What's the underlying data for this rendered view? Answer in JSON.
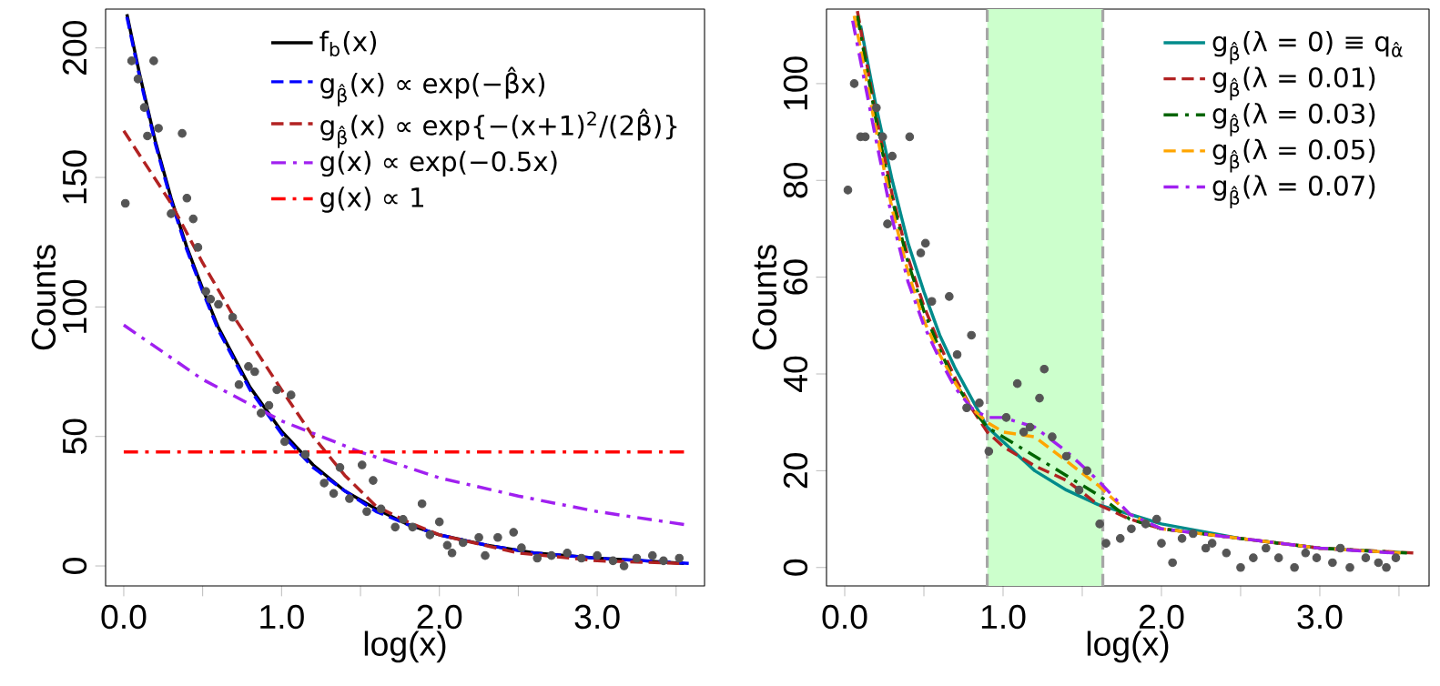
{
  "chart_data": [
    {
      "type": "line",
      "xlabel": "log(x)",
      "ylabel": "Counts",
      "xlim": [
        -0.115,
        3.68
      ],
      "ylim": [
        -7.7,
        215
      ],
      "xticks": [
        {
          "value": 0,
          "label": "0.0"
        },
        {
          "value": 0.5,
          "label": null
        },
        {
          "value": 1,
          "label": "1.0"
        },
        {
          "value": 1.5,
          "label": null
        },
        {
          "value": 2,
          "label": "2.0"
        },
        {
          "value": 2.5,
          "label": null
        },
        {
          "value": 3,
          "label": "3.0"
        },
        {
          "value": 3.5,
          "label": null
        }
      ],
      "yticks": [
        0,
        50,
        100,
        150,
        200
      ],
      "legend": "top right",
      "series": [
        {
          "type": "scatter",
          "color": "#555555",
          "x": [
            0.01,
            0.05,
            0.09,
            0.13,
            0.15,
            0.19,
            0.22,
            0.3,
            0.37,
            0.4,
            0.44,
            0.47,
            0.52,
            0.55,
            0.6,
            0.69,
            0.73,
            0.79,
            0.83,
            0.87,
            0.92,
            0.97,
            1.02,
            1.06,
            1.15,
            1.27,
            1.33,
            1.37,
            1.43,
            1.51,
            1.54,
            1.58,
            1.63,
            1.72,
            1.77,
            1.83,
            1.89,
            1.94,
            2.0,
            2.05,
            2.08,
            2.15,
            2.25,
            2.29,
            2.37,
            2.47,
            2.52,
            2.62,
            2.71,
            2.81,
            2.9,
            3.0,
            3.1,
            3.17,
            3.25,
            3.35,
            3.42,
            3.52
          ],
          "values": [
            140,
            195,
            188,
            177,
            166,
            195,
            169,
            136,
            167,
            142,
            134,
            123,
            106,
            103,
            101,
            96,
            70,
            77,
            75,
            59,
            62,
            68,
            48,
            66,
            43,
            32,
            28,
            38,
            26,
            39,
            21,
            33,
            22,
            15,
            18,
            15,
            24,
            12,
            17,
            8,
            5,
            9,
            11,
            4,
            11,
            13,
            7,
            3,
            4,
            5,
            3,
            4,
            2,
            0,
            3,
            4,
            2,
            3
          ]
        },
        {
          "name": "f$_{b}$(x)",
          "color": "#000000",
          "line_style": "solid",
          "x": [
            0.02,
            0.1,
            0.2,
            0.3,
            0.4,
            0.5,
            0.6,
            0.8,
            1.0,
            1.2,
            1.4,
            1.6,
            1.8,
            2.0,
            2.3,
            2.6,
            3.0,
            3.3,
            3.55
          ],
          "values": [
            213,
            190,
            164,
            142,
            123,
            107,
            92,
            69,
            52,
            39,
            29,
            22,
            16,
            12,
            8,
            5,
            3,
            2,
            1
          ]
        },
        {
          "name": "g$_{β̂}$(x) ∝ exp(−β̂x)",
          "color": "#0000ff",
          "line_style": "dashed",
          "x": [
            0.02,
            0.1,
            0.2,
            0.3,
            0.4,
            0.5,
            0.6,
            0.8,
            1.0,
            1.2,
            1.4,
            1.6,
            1.8,
            2.0,
            2.3,
            2.6,
            3.0,
            3.3,
            3.58
          ],
          "values": [
            212,
            189,
            163,
            141,
            122,
            106,
            91,
            68,
            51,
            38,
            29,
            21,
            16,
            12,
            8,
            5,
            3,
            2,
            1
          ]
        },
        {
          "name": "g$_{β̂}$(x) ∝ exp{−(x+1)$^{2}$/(2β̂)}",
          "color": "#b22222",
          "line_style": "dashed",
          "x": [
            0,
            0.3,
            0.5,
            0.7,
            1.0,
            1.2,
            1.4,
            1.6,
            1.8,
            2.0,
            2.5,
            3.0,
            3.52
          ],
          "values": [
            168,
            140,
            117,
            96,
            68,
            50,
            35,
            23,
            17,
            12,
            5,
            2,
            1
          ]
        },
        {
          "name": "g(x) ∝ exp(−0.5x)",
          "color": "#a020f0",
          "line_style": "dashdot",
          "x": [
            0,
            0.5,
            1.0,
            1.5,
            2.0,
            2.5,
            3.0,
            3.55
          ],
          "values": [
            93,
            72,
            56,
            44,
            34,
            27,
            21,
            16
          ]
        },
        {
          "name": "g(x) ∝ 1",
          "color": "#ff0000",
          "line_style": "dashdot",
          "x": [
            0,
            3.55
          ],
          "values": [
            44,
            44
          ]
        }
      ]
    },
    {
      "type": "line",
      "xlabel": "log(x)",
      "ylabel": "Counts",
      "xlim": [
        -0.115,
        3.69
      ],
      "ylim": [
        -3.8,
        115.4
      ],
      "xticks": [
        {
          "value": 0,
          "label": "0.0"
        },
        {
          "value": 0.5,
          "label": null
        },
        {
          "value": 1,
          "label": "1.0"
        },
        {
          "value": 1.5,
          "label": null
        },
        {
          "value": 2,
          "label": "2.0"
        },
        {
          "value": 2.5,
          "label": null
        },
        {
          "value": 3,
          "label": "3.0"
        },
        {
          "value": 3.5,
          "label": null
        }
      ],
      "yticks": [
        0,
        20,
        40,
        60,
        80,
        100
      ],
      "legend": "top right",
      "bands": [
        {
          "axis": "x",
          "from": 0.9,
          "to": 1.63,
          "color": "#ccffcc"
        }
      ],
      "ref_lines": [
        {
          "axis": "x",
          "value": 0.9,
          "color": "#a6a6a6",
          "line_style": "dashed"
        },
        {
          "axis": "x",
          "value": 1.63,
          "color": "#a6a6a6",
          "line_style": "dashed"
        }
      ],
      "series": [
        {
          "type": "scatter",
          "color": "#555555",
          "x": [
            0.02,
            0.06,
            0.1,
            0.13,
            0.2,
            0.24,
            0.27,
            0.3,
            0.41,
            0.48,
            0.51,
            0.55,
            0.66,
            0.71,
            0.77,
            0.8,
            0.85,
            0.91,
            1.02,
            1.09,
            1.13,
            1.17,
            1.23,
            1.26,
            1.31,
            1.4,
            1.48,
            1.53,
            1.61,
            1.65,
            1.74,
            1.81,
            1.9,
            1.97,
            2.0,
            2.07,
            2.13,
            2.2,
            2.28,
            2.32,
            2.41,
            2.5,
            2.58,
            2.66,
            2.74,
            2.84,
            2.91,
            2.98,
            3.08,
            3.13,
            3.19,
            3.29,
            3.37,
            3.42,
            3.48
          ],
          "values": [
            78,
            100,
            89,
            89,
            95,
            89,
            71,
            85,
            89,
            65,
            67,
            55,
            56,
            44,
            33,
            48,
            34,
            24,
            31,
            38,
            28,
            29,
            35,
            41,
            27,
            23,
            16,
            20,
            9,
            5,
            6,
            8,
            9,
            10,
            5,
            1,
            6,
            7,
            4,
            5,
            3,
            0,
            2,
            4,
            2,
            0,
            3,
            2,
            1,
            4,
            0,
            2,
            1,
            0,
            2
          ]
        },
        {
          "name": "g$_{β̂}$(λ = 0) ≡ q$_{α̂}$",
          "color": "#008b8b",
          "line_style": "solid",
          "x": [
            0.1,
            0.2,
            0.3,
            0.4,
            0.5,
            0.6,
            0.7,
            0.8,
            0.9,
            1.0,
            1.2,
            1.4,
            1.6,
            1.8,
            2.0,
            2.5,
            3.0,
            3.5
          ],
          "values": [
            112,
            95,
            80,
            67,
            57,
            48,
            41,
            35,
            29,
            26,
            20,
            16,
            13,
            11,
            9,
            6,
            4,
            3
          ]
        },
        {
          "name": "g$_{β̂}$(λ = 0.01)",
          "color": "#b22222",
          "line_style": "dashed",
          "x": [
            0.08,
            0.2,
            0.3,
            0.4,
            0.5,
            0.6,
            0.7,
            0.8,
            0.9,
            1.0,
            1.2,
            1.4,
            1.6,
            1.8,
            2.0,
            2.5,
            3.0,
            3.59
          ],
          "values": [
            115,
            93,
            77,
            64,
            54,
            46,
            39,
            33,
            28,
            25,
            21,
            18,
            13,
            10,
            8,
            6,
            4,
            3
          ]
        },
        {
          "name": "g$_{β̂}$(λ = 0.03)",
          "color": "#006400",
          "line_style": "dashdot",
          "x": [
            0.08,
            0.2,
            0.3,
            0.4,
            0.5,
            0.6,
            0.7,
            0.8,
            0.9,
            1.0,
            1.2,
            1.4,
            1.6,
            1.8,
            2.0,
            2.5,
            3.0,
            3.55
          ],
          "values": [
            114,
            92,
            76,
            63,
            53,
            45,
            38,
            33,
            29,
            27,
            23,
            19,
            15,
            10,
            8,
            6,
            4,
            3
          ]
        },
        {
          "name": "g$_{β̂}$(λ = 0.05)",
          "color": "#ffa500",
          "line_style": "dashed",
          "x": [
            0.06,
            0.2,
            0.3,
            0.4,
            0.5,
            0.6,
            0.7,
            0.8,
            0.9,
            1.0,
            1.2,
            1.4,
            1.6,
            1.8,
            2.0,
            2.5,
            3.0,
            3.51
          ],
          "values": [
            114,
            90,
            74,
            61,
            51,
            44,
            38,
            33,
            30,
            28,
            27,
            22,
            17,
            11,
            8,
            6,
            4,
            3
          ]
        },
        {
          "name": "g$_{β̂}$(λ = 0.07)",
          "color": "#a020f0",
          "line_style": "dashdot",
          "x": [
            0.05,
            0.2,
            0.3,
            0.4,
            0.5,
            0.6,
            0.7,
            0.8,
            0.9,
            1.0,
            1.2,
            1.4,
            1.6,
            1.8,
            2.0,
            2.5,
            3.0,
            3.47
          ],
          "values": [
            113,
            88,
            72,
            59,
            50,
            43,
            37,
            33,
            31,
            31,
            29,
            24,
            18,
            11,
            8,
            6,
            4,
            3
          ]
        }
      ]
    }
  ]
}
